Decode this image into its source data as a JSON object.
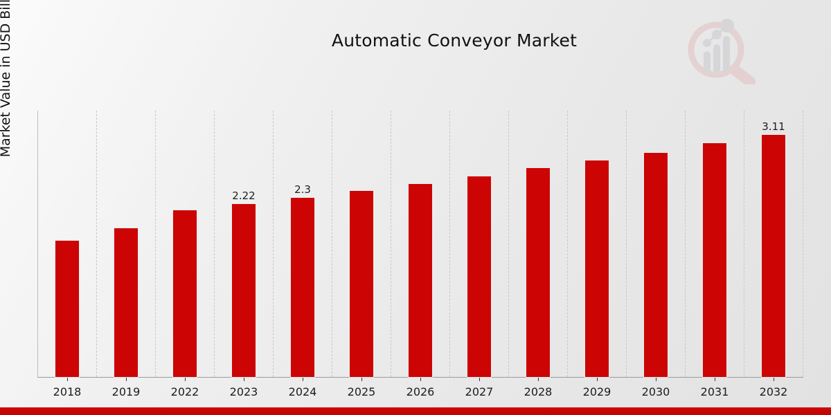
{
  "page": {
    "title": "Automatic Conveyor Market",
    "ylabel": "Market Value in USD Billion"
  },
  "colors": {
    "bar": "#cc0403",
    "bottom_band": "#c40404",
    "gridline": "#c7c7c7",
    "axis_line": "#9a9a9a",
    "text": "#111111",
    "logo_red": "#e2bcbc",
    "logo_gray": "#c6c6cb"
  },
  "logo": {
    "name": "magnifier-bar-chart-watermark"
  },
  "chart_data": {
    "type": "bar",
    "title": "Automatic Conveyor Market",
    "xlabel": "",
    "ylabel": "Market Value in USD Billion",
    "categories": [
      "2018",
      "2019",
      "2022",
      "2023",
      "2024",
      "2025",
      "2026",
      "2027",
      "2028",
      "2029",
      "2030",
      "2031",
      "2032"
    ],
    "values": [
      1.75,
      1.91,
      2.14,
      2.22,
      2.3,
      2.39,
      2.48,
      2.58,
      2.68,
      2.78,
      2.88,
      3.0,
      3.11
    ],
    "point_labels": [
      "",
      "",
      "",
      "2.22",
      "2.3",
      "",
      "",
      "",
      "",
      "",
      "",
      "",
      "3.11"
    ],
    "ylim": [
      0,
      3.42
    ],
    "grid": "vertical-dashed",
    "legend": "none",
    "bar_color": "#cc0403"
  }
}
